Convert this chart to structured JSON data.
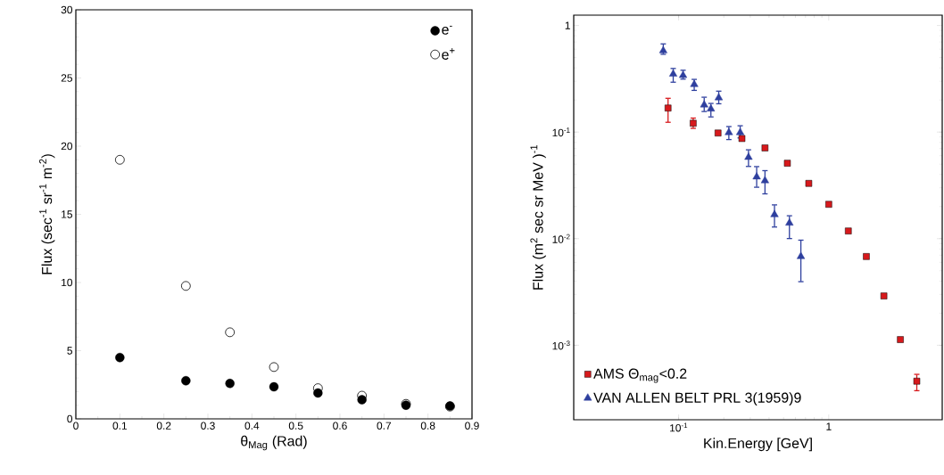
{
  "chart_data": [
    {
      "type": "scatter",
      "xlabel": "θ$_{Mag}$ (Rad)",
      "ylabel": "Flux (sec$^{-1}$ sr$^{-1}$ m$^{-2}$)",
      "xlim": [
        0,
        0.9
      ],
      "ylim": [
        0,
        30
      ],
      "xticks": [
        0,
        0.1,
        0.2,
        0.3,
        0.4,
        0.5,
        0.6,
        0.7,
        0.8,
        0.9
      ],
      "yticks": [
        0,
        5,
        10,
        15,
        20,
        25,
        30
      ],
      "legend": "top right",
      "marker": "circle",
      "grid": false,
      "series": [
        {
          "name": "e$^{-}$",
          "color": "#000000",
          "x": [
            0.1,
            0.25,
            0.35,
            0.45,
            0.55,
            0.65,
            0.75,
            0.85
          ],
          "values": [
            4.5,
            2.8,
            2.6,
            2.35,
            1.9,
            1.4,
            1.0,
            0.95
          ]
        },
        {
          "name": "e$^{+}$",
          "color": "#000000",
          "x": [
            0.1,
            0.25,
            0.35,
            0.45,
            0.55,
            0.65,
            0.75,
            0.85
          ],
          "values": [
            19.0,
            9.75,
            6.35,
            3.8,
            2.25,
            1.7,
            1.1,
            0.9
          ]
        }
      ]
    },
    {
      "type": "scatter",
      "xlabel": "Kin.Energy  [GeV]",
      "ylabel": "Flux  (m$^{2}$  sec  sr  MeV )$^{-1}$",
      "log": "xy",
      "xlim": [
        0.02,
        5.7
      ],
      "ylim": [
        0.0002,
        1.25
      ],
      "xticks": [
        {
          "value": 0.1,
          "label": "10$^{-1}$"
        },
        1
      ],
      "yticks": [
        {
          "value": 0.001,
          "label": "10$^{-3}$"
        },
        {
          "value": 0.01,
          "label": "10$^{-2}$"
        },
        {
          "value": 0.1,
          "label": "10$^{-1}$"
        },
        1
      ],
      "legend": "bottom left",
      "grid": false,
      "series": [
        {
          "name": "AMS  Θ$_{mag}$<0.2",
          "color": "#d7191c",
          "marker": "square",
          "x": [
            0.085,
            0.125,
            0.183,
            0.264,
            0.376,
            0.53,
            0.736,
            1.0,
            1.35,
            1.78,
            2.33,
            3.0,
            3.86
          ],
          "values": [
            0.168,
            0.121,
            0.098,
            0.087,
            0.071,
            0.051,
            0.033,
            0.021,
            0.0118,
            0.0068,
            0.0029,
            0.00113,
            0.00046
          ],
          "errors": [
            [
              0.122,
              0.21
            ],
            [
              0.107,
              0.137
            ],
            null,
            null,
            null,
            null,
            null,
            null,
            null,
            null,
            null,
            null,
            [
              0.00037,
              0.00054
            ]
          ]
        },
        {
          "name": "VAN ALLEN BELT PRL 3(1959)9",
          "color": "#2e3f9e",
          "marker": "triangle",
          "x": [
            0.079,
            0.092,
            0.107,
            0.127,
            0.148,
            0.164,
            0.185,
            0.216,
            0.257,
            0.292,
            0.331,
            0.376,
            0.435,
            0.547,
            0.652
          ],
          "values": [
            0.58,
            0.35,
            0.34,
            0.28,
            0.18,
            0.165,
            0.21,
            0.099,
            0.099,
            0.058,
            0.038,
            0.035,
            0.0168,
            0.014,
            0.0068
          ],
          "errors": [
            [
              0.53,
              0.68
            ],
            [
              0.29,
              0.4
            ],
            [
              0.31,
              0.385
            ],
            [
              0.243,
              0.316
            ],
            [
              0.154,
              0.215
            ],
            [
              0.137,
              0.188
            ],
            [
              0.182,
              0.245
            ],
            [
              0.084,
              0.114
            ],
            [
              0.087,
              0.116
            ],
            [
              0.047,
              0.069
            ],
            [
              0.03,
              0.048
            ],
            [
              0.026,
              0.044
            ],
            [
              0.0127,
              0.021
            ],
            [
              0.0099,
              0.0166
            ],
            [
              0.0039,
              0.0098
            ]
          ]
        }
      ]
    }
  ]
}
